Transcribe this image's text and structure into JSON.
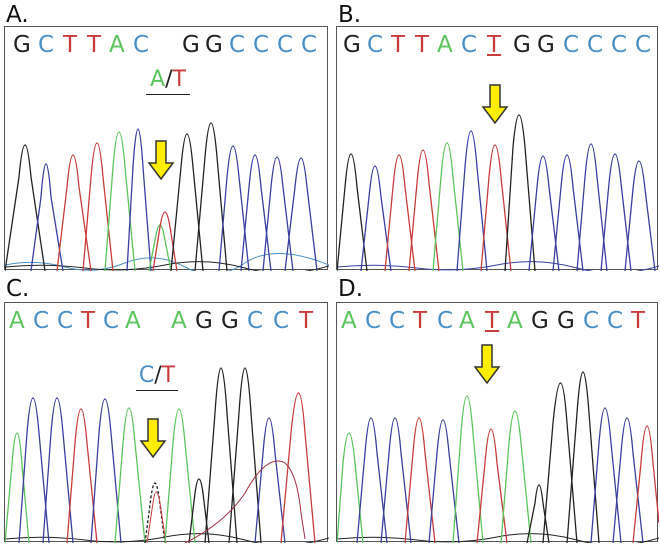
{
  "colors": {
    "A": "#5cc45c",
    "C": "#4a90c8",
    "G": "#222222",
    "T": "#c83c3c",
    "arrow": "#ffee00",
    "arrow_stroke": "#333333"
  },
  "panels": [
    {
      "label": "A.",
      "bases": [
        "G",
        "C",
        "T",
        "T",
        "A",
        "C",
        "G",
        "G",
        "C",
        "C",
        "C",
        "C"
      ],
      "annotation": {
        "left": "A",
        "slash": "/",
        "right": "T"
      }
    },
    {
      "label": "B.",
      "bases": [
        "G",
        "C",
        "T",
        "T",
        "A",
        "C",
        "T",
        "G",
        "G",
        "C",
        "C",
        "C",
        "C"
      ],
      "underlined_base": "T"
    },
    {
      "label": "C.",
      "bases": [
        "A",
        "C",
        "C",
        "T",
        "C",
        "A",
        "A",
        "G",
        "G",
        "C",
        "C",
        "T"
      ],
      "annotation": {
        "left": "C",
        "slash": "/",
        "right": "T"
      }
    },
    {
      "label": "D.",
      "bases": [
        "A",
        "C",
        "C",
        "T",
        "C",
        "A",
        "T",
        "A",
        "G",
        "G",
        "C",
        "C",
        "T"
      ],
      "underlined_base": "T"
    }
  ]
}
